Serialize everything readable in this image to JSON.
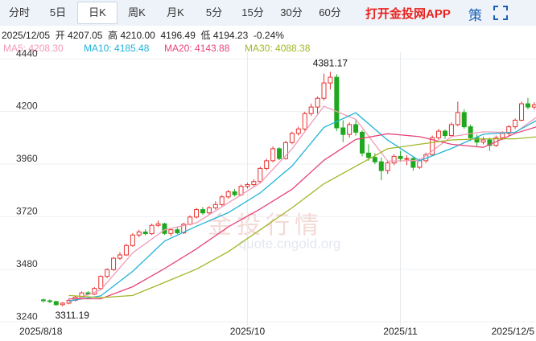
{
  "tabs": [
    "分时",
    "5日",
    "日K",
    "周K",
    "月K",
    "5分",
    "15分",
    "30分",
    "60分"
  ],
  "selected_tab": 2,
  "app_link": "打开金投网APP",
  "side_button": "策",
  "info_line": "2025/12/05  开 4207.05  高 4210.00  4196.49  低 4194.23  -0.24%",
  "watermark": {
    "title": "金投行情",
    "url": "quote.cngold.org"
  },
  "chart_data": {
    "type": "candlestick",
    "categories": [
      "2025/8/18",
      null,
      null,
      null,
      null,
      null,
      null,
      null,
      null,
      null,
      null,
      null,
      null,
      null,
      null,
      null,
      null,
      null,
      null,
      null,
      null,
      null,
      null,
      null,
      null,
      null,
      null,
      null,
      null,
      null,
      null,
      null,
      "2025/10",
      null,
      null,
      null,
      null,
      null,
      null,
      null,
      null,
      null,
      null,
      null,
      null,
      null,
      null,
      null,
      null,
      null,
      null,
      null,
      null,
      null,
      null,
      null,
      "2025/11",
      null,
      null,
      null,
      null,
      null,
      null,
      null,
      null,
      null,
      null,
      null,
      null,
      null,
      null,
      null,
      null,
      null,
      null,
      "2025/12/5"
    ],
    "candles": [
      [
        3340,
        3346,
        3328,
        3336
      ],
      [
        3336,
        3342,
        3325,
        3332
      ],
      [
        3332,
        3336,
        3314,
        3318
      ],
      [
        3318,
        3330,
        3311.19,
        3325
      ],
      [
        3325,
        3344,
        3320,
        3338
      ],
      [
        3338,
        3358,
        3333,
        3352
      ],
      [
        3352,
        3378,
        3348,
        3372
      ],
      [
        3372,
        3380,
        3360,
        3366
      ],
      [
        3366,
        3398,
        3362,
        3392
      ],
      [
        3392,
        3452,
        3388,
        3447
      ],
      [
        3447,
        3484,
        3440,
        3478
      ],
      [
        3478,
        3536,
        3472,
        3530
      ],
      [
        3530,
        3558,
        3522,
        3545
      ],
      [
        3545,
        3596,
        3540,
        3588
      ],
      [
        3588,
        3644,
        3582,
        3636
      ],
      [
        3636,
        3660,
        3626,
        3650
      ],
      [
        3650,
        3662,
        3634,
        3642
      ],
      [
        3642,
        3688,
        3636,
        3680
      ],
      [
        3680,
        3702,
        3672,
        3687
      ],
      [
        3687,
        3692,
        3636,
        3643
      ],
      [
        3643,
        3668,
        3630,
        3660
      ],
      [
        3660,
        3672,
        3640,
        3646
      ],
      [
        3646,
        3692,
        3640,
        3685
      ],
      [
        3685,
        3726,
        3680,
        3718
      ],
      [
        3718,
        3760,
        3712,
        3752
      ],
      [
        3752,
        3764,
        3728,
        3737
      ],
      [
        3737,
        3768,
        3730,
        3760
      ],
      [
        3760,
        3790,
        3752,
        3775
      ],
      [
        3775,
        3818,
        3768,
        3810
      ],
      [
        3810,
        3842,
        3802,
        3833
      ],
      [
        3833,
        3846,
        3812,
        3820
      ],
      [
        3820,
        3866,
        3814,
        3858
      ],
      [
        3858,
        3874,
        3848,
        3866
      ],
      [
        3866,
        3890,
        3856,
        3880
      ],
      [
        3880,
        3948,
        3874,
        3940
      ],
      [
        3940,
        3984,
        3932,
        3975
      ],
      [
        3975,
        4040,
        3968,
        4030
      ],
      [
        4030,
        4036,
        3978,
        3985
      ],
      [
        3985,
        4066,
        3980,
        4058
      ],
      [
        4058,
        4108,
        4050,
        4100
      ],
      [
        4100,
        4130,
        4090,
        4120
      ],
      [
        4120,
        4198,
        4112,
        4190
      ],
      [
        4190,
        4236,
        4180,
        4220
      ],
      [
        4220,
        4268,
        4190,
        4260
      ],
      [
        4260,
        4372,
        4250,
        4330
      ],
      [
        4330,
        4381.17,
        4300,
        4356
      ],
      [
        4356,
        4370,
        4110,
        4125
      ],
      [
        4125,
        4160,
        4060,
        4095
      ],
      [
        4095,
        4150,
        4080,
        4140
      ],
      [
        4140,
        4160,
        4090,
        4105
      ],
      [
        4105,
        4115,
        3995,
        4010
      ],
      [
        4010,
        4050,
        3975,
        3990
      ],
      [
        3990,
        4010,
        3960,
        3970
      ],
      [
        3970,
        3990,
        3886,
        3930
      ],
      [
        3930,
        3975,
        3915,
        3965
      ],
      [
        3965,
        4005,
        3955,
        3995
      ],
      [
        3995,
        4020,
        3970,
        3985
      ],
      [
        3985,
        4000,
        3955,
        3985
      ],
      [
        3985,
        3995,
        3930,
        3945
      ],
      [
        3945,
        3985,
        3938,
        3975
      ],
      [
        3975,
        4012,
        3965,
        4003
      ],
      [
        4003,
        4090,
        3998,
        4080
      ],
      [
        4080,
        4120,
        4070,
        4110
      ],
      [
        4110,
        4118,
        4075,
        4090
      ],
      [
        4090,
        4150,
        4082,
        4140
      ],
      [
        4140,
        4245,
        4132,
        4195
      ],
      [
        4195,
        4210,
        4120,
        4130
      ],
      [
        4130,
        4140,
        4065,
        4080
      ],
      [
        4080,
        4095,
        4040,
        4060
      ],
      [
        4060,
        4085,
        4050,
        4070
      ],
      [
        4070,
        4080,
        4020,
        4045
      ],
      [
        4045,
        4090,
        4038,
        4080
      ],
      [
        4080,
        4110,
        4070,
        4100
      ],
      [
        4100,
        4138,
        4090,
        4130
      ],
      [
        4130,
        4168,
        4120,
        4160
      ],
      [
        4160,
        4245,
        4155,
        4235
      ],
      [
        4235,
        4262,
        4210,
        4220
      ],
      [
        4220,
        4242,
        4208,
        4230
      ],
      [
        4230,
        4238,
        4200,
        4208
      ],
      [
        4207.05,
        4210,
        4194.23,
        4196.49
      ]
    ],
    "rise_color": "#e8312f",
    "fall_color": "#1fa81f",
    "series": [
      {
        "legend": "MA5: 4208.30",
        "color": "#f29bb5",
        "x": [
          4,
          9,
          14,
          19,
          24,
          29,
          34,
          39,
          44,
          49,
          54,
          59,
          64,
          69,
          74,
          79
        ],
        "values": [
          3330,
          3386,
          3555,
          3660,
          3692,
          3783,
          3873,
          4030,
          4224,
          4164,
          3973,
          3977,
          4085,
          4107,
          4103,
          4208.3
        ]
      },
      {
        "legend": "MA10: 4185.48",
        "color": "#22b4d8",
        "x": [
          4,
          9,
          14,
          19,
          24,
          29,
          34,
          39,
          44,
          49,
          54,
          59,
          64,
          69,
          74,
          79
        ],
        "values": [
          3335,
          3358,
          3470,
          3608,
          3676,
          3738,
          3828,
          3951,
          4127,
          4194,
          4069,
          3975,
          4031,
          4096,
          4105,
          4185.48
        ]
      },
      {
        "legend": "MA20: 4143.88",
        "color": "#e8457a",
        "x": [
          4,
          9,
          14,
          19,
          24,
          29,
          34,
          39,
          44,
          49,
          54,
          59,
          64,
          69,
          74,
          79
        ],
        "values": [
          3345,
          3345,
          3400,
          3483,
          3573,
          3673,
          3755,
          3845,
          3977,
          4072,
          4098,
          4085,
          4050,
          4036,
          4100,
          4143.88
        ]
      },
      {
        "legend": "MA30: 4088.38",
        "color": "#a2b628",
        "x": [
          4,
          9,
          14,
          19,
          24,
          29,
          34,
          39,
          44,
          49,
          54,
          59,
          64,
          69,
          74,
          79
        ],
        "values": [
          3360,
          3350,
          3360,
          3420,
          3480,
          3560,
          3660,
          3760,
          3870,
          3950,
          4030,
          4050,
          4070,
          4075,
          4075,
          4088.38
        ]
      }
    ],
    "annotations": [
      {
        "text": "4381.17",
        "index": 45,
        "value": 4381.17
      },
      {
        "text": "3311.19",
        "index": 3,
        "value": 3311.19
      }
    ],
    "ylim": [
      3222,
      4470
    ],
    "yticks": [
      3240,
      3480,
      3720,
      3960,
      4200,
      4440
    ],
    "grid": true
  }
}
